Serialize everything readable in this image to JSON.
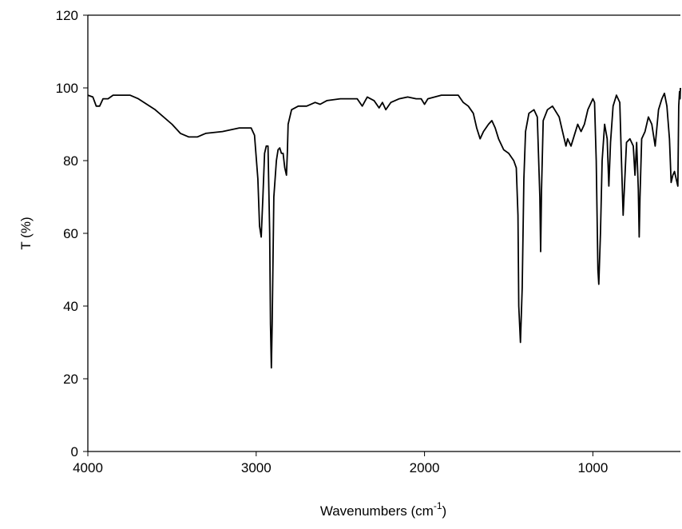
{
  "chart_data": {
    "type": "line",
    "xlabel": [
      "Wavenumbers (cm",
      "-1",
      ")"
    ],
    "ylabel": "T (%)",
    "xlim": [
      4000,
      480
    ],
    "ylim": [
      0,
      120
    ],
    "xticks": [
      4000,
      3000,
      2000,
      1000
    ],
    "yticks": [
      0,
      20,
      40,
      60,
      80,
      100,
      120
    ],
    "series": [
      {
        "color": "#000000",
        "x": [
          4000,
          3970,
          3950,
          3930,
          3910,
          3880,
          3850,
          3750,
          3700,
          3600,
          3500,
          3450,
          3400,
          3350,
          3300,
          3200,
          3100,
          3030,
          3010,
          2990,
          2980,
          2970,
          2960,
          2950,
          2940,
          2930,
          2920,
          2915,
          2910,
          2905,
          2895,
          2880,
          2870,
          2860,
          2850,
          2840,
          2830,
          2820,
          2815,
          2810,
          2790,
          2750,
          2700,
          2650,
          2620,
          2580,
          2500,
          2400,
          2370,
          2340,
          2300,
          2270,
          2250,
          2230,
          2200,
          2150,
          2100,
          2050,
          2020,
          2000,
          1980,
          1900,
          1800,
          1770,
          1740,
          1710,
          1690,
          1670,
          1650,
          1620,
          1600,
          1580,
          1560,
          1530,
          1500,
          1470,
          1455,
          1445,
          1440,
          1430,
          1420,
          1410,
          1400,
          1380,
          1350,
          1330,
          1315,
          1310,
          1305,
          1295,
          1270,
          1240,
          1200,
          1180,
          1160,
          1150,
          1130,
          1110,
          1090,
          1070,
          1050,
          1030,
          1000,
          990,
          980,
          970,
          965,
          955,
          945,
          930,
          915,
          905,
          895,
          880,
          860,
          840,
          830,
          820,
          810,
          800,
          780,
          760,
          750,
          740,
          730,
          725,
          720,
          710,
          690,
          670,
          650,
          630,
          610,
          590,
          575,
          560,
          545,
          535,
          525,
          515,
          505,
          495,
          490,
          485,
          482,
          480
        ],
        "values": [
          98,
          97.5,
          95,
          95,
          97,
          97,
          98,
          98,
          97,
          94,
          90,
          87.5,
          86.5,
          86.5,
          87.5,
          88,
          89,
          89,
          87,
          75,
          62,
          59,
          70,
          82,
          84,
          84,
          60,
          35,
          23,
          35,
          70,
          80,
          83,
          83.5,
          82,
          82,
          78,
          76,
          82,
          90,
          94,
          95,
          95,
          96,
          95.5,
          96.5,
          97,
          97,
          95,
          97.5,
          96.5,
          94.5,
          96,
          94,
          96,
          97,
          97.5,
          97,
          97,
          95.5,
          97,
          98,
          98,
          96,
          95,
          93,
          89,
          86,
          88,
          90,
          91,
          89,
          86,
          83,
          82,
          80,
          78,
          65,
          40,
          30,
          45,
          75,
          88,
          93,
          94,
          92,
          70,
          55,
          72,
          91,
          94,
          95,
          92,
          88,
          84,
          86,
          84,
          87,
          90,
          88,
          90,
          94,
          97,
          96,
          80,
          50,
          46,
          60,
          80,
          90,
          86,
          73,
          85,
          95,
          98,
          96,
          80,
          65,
          75,
          85,
          86,
          84,
          76,
          85,
          72,
          59,
          70,
          86,
          88,
          92,
          90,
          84,
          94,
          97,
          98.5,
          95,
          86,
          74,
          76,
          77,
          75,
          73,
          95,
          99,
          97,
          100
        ]
      }
    ]
  }
}
